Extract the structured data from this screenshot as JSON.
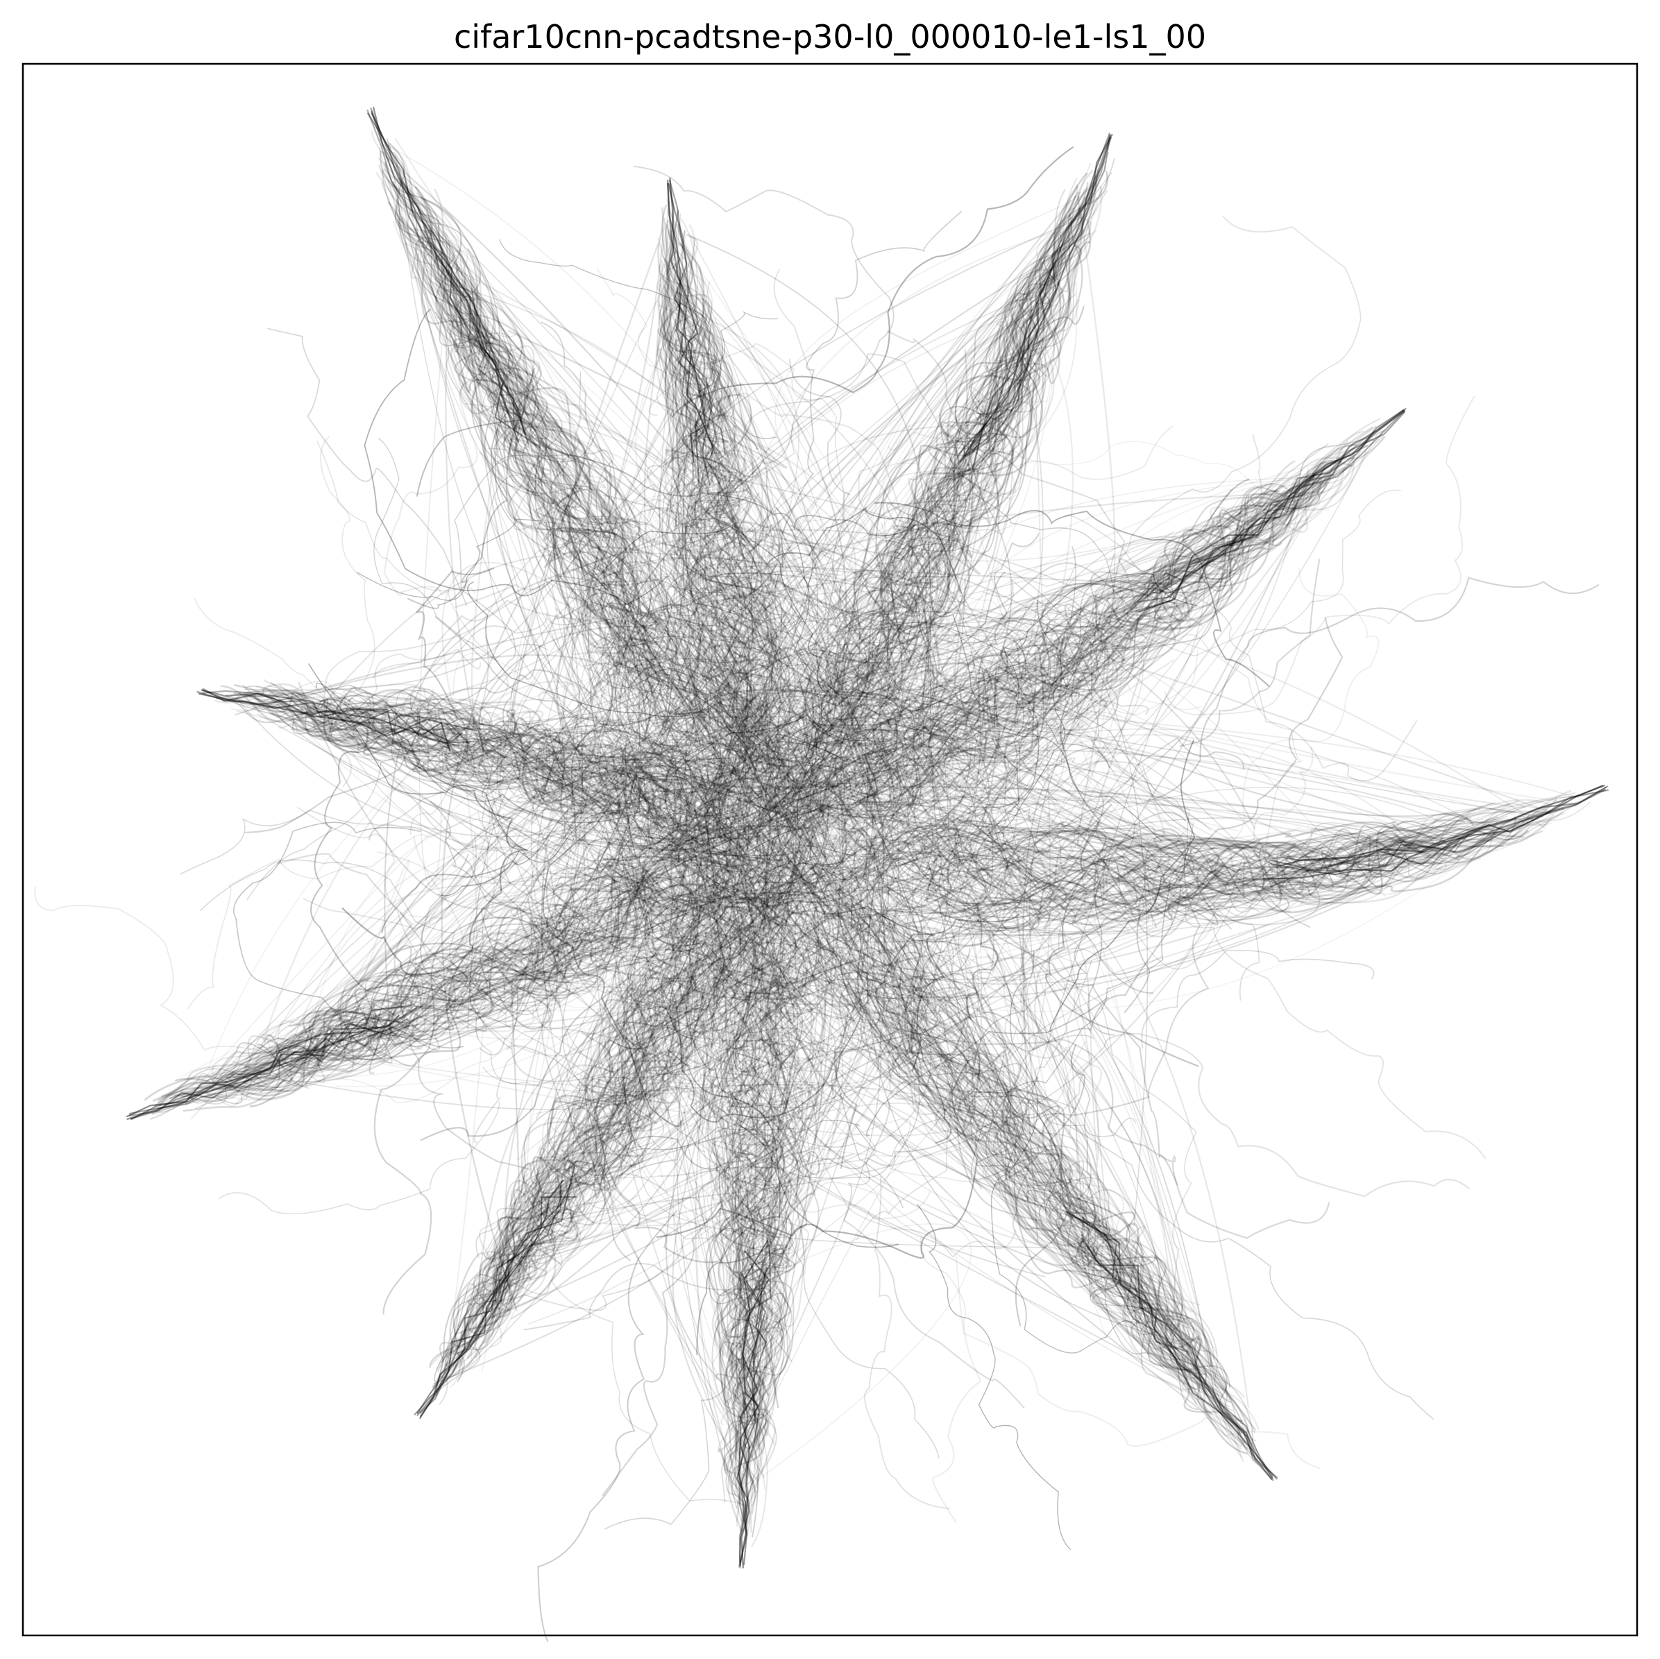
{
  "chart_data": {
    "type": "line",
    "title": "cifar10cnn-pcadtsne-p30-l0_000010-le1-ls1_00",
    "xlabel": "",
    "ylabel": "",
    "grid": false,
    "legend": "none",
    "axis_ticks": false,
    "line_color": "#000000",
    "background": "#ffffff",
    "xlim": [
      -1.0,
      1.0
    ],
    "ylim": [
      -1.0,
      1.0
    ],
    "structure": {
      "center": [
        -0.07,
        0.02
      ],
      "arms": [
        {
          "tip": [
            -0.57,
            0.94
          ],
          "mid": [
            -0.38,
            0.48
          ]
        },
        {
          "tip": [
            0.35,
            0.91
          ],
          "mid": [
            0.18,
            0.45
          ]
        },
        {
          "tip": [
            -0.2,
            0.85
          ],
          "mid": [
            -0.15,
            0.45
          ]
        },
        {
          "tip": [
            0.71,
            0.56
          ],
          "mid": [
            0.38,
            0.28
          ]
        },
        {
          "tip": [
            0.96,
            0.08
          ],
          "mid": [
            0.55,
            -0.12
          ]
        },
        {
          "tip": [
            0.55,
            -0.8
          ],
          "mid": [
            0.32,
            -0.48
          ]
        },
        {
          "tip": [
            -0.11,
            -0.91
          ],
          "mid": [
            -0.09,
            -0.5
          ]
        },
        {
          "tip": [
            -0.51,
            -0.72
          ],
          "mid": [
            -0.32,
            -0.42
          ]
        },
        {
          "tip": [
            -0.87,
            -0.34
          ],
          "mid": [
            -0.5,
            -0.22
          ]
        },
        {
          "tip": [
            -0.78,
            0.2
          ],
          "mid": [
            -0.42,
            0.15
          ]
        }
      ]
    }
  }
}
